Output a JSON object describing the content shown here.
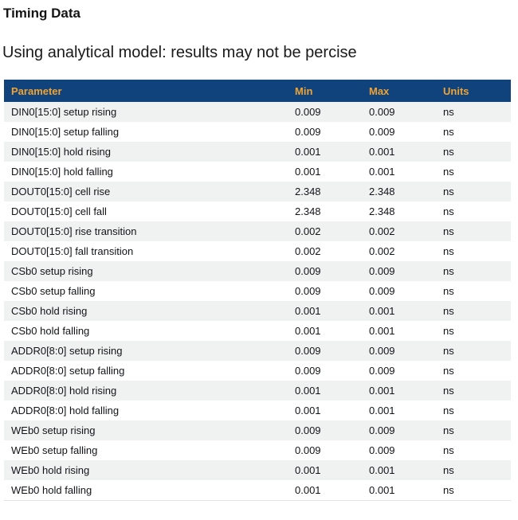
{
  "page": {
    "title": "Timing Data",
    "subtitle": "Using analytical model: results may not be percise"
  },
  "table": {
    "columns": {
      "parameter": "Parameter",
      "min": "Min",
      "max": "Max",
      "units": "Units"
    },
    "rows": [
      {
        "parameter": "DIN0[15:0] setup rising",
        "min": "0.009",
        "max": "0.009",
        "units": "ns"
      },
      {
        "parameter": "DIN0[15:0] setup falling",
        "min": "0.009",
        "max": "0.009",
        "units": "ns"
      },
      {
        "parameter": "DIN0[15:0] hold rising",
        "min": "0.001",
        "max": "0.001",
        "units": "ns"
      },
      {
        "parameter": "DIN0[15:0] hold falling",
        "min": "0.001",
        "max": "0.001",
        "units": "ns"
      },
      {
        "parameter": "DOUT0[15:0] cell rise",
        "min": "2.348",
        "max": "2.348",
        "units": "ns"
      },
      {
        "parameter": "DOUT0[15:0] cell fall",
        "min": "2.348",
        "max": "2.348",
        "units": "ns"
      },
      {
        "parameter": "DOUT0[15:0] rise transition",
        "min": "0.002",
        "max": "0.002",
        "units": "ns"
      },
      {
        "parameter": "DOUT0[15:0] fall transition",
        "min": "0.002",
        "max": "0.002",
        "units": "ns"
      },
      {
        "parameter": "CSb0 setup rising",
        "min": "0.009",
        "max": "0.009",
        "units": "ns"
      },
      {
        "parameter": "CSb0 setup falling",
        "min": "0.009",
        "max": "0.009",
        "units": "ns"
      },
      {
        "parameter": "CSb0 hold rising",
        "min": "0.001",
        "max": "0.001",
        "units": "ns"
      },
      {
        "parameter": "CSb0 hold falling",
        "min": "0.001",
        "max": "0.001",
        "units": "ns"
      },
      {
        "parameter": "ADDR0[8:0] setup rising",
        "min": "0.009",
        "max": "0.009",
        "units": "ns"
      },
      {
        "parameter": "ADDR0[8:0] setup falling",
        "min": "0.009",
        "max": "0.009",
        "units": "ns"
      },
      {
        "parameter": "ADDR0[8:0] hold rising",
        "min": "0.001",
        "max": "0.001",
        "units": "ns"
      },
      {
        "parameter": "ADDR0[8:0] hold falling",
        "min": "0.001",
        "max": "0.001",
        "units": "ns"
      },
      {
        "parameter": "WEb0 setup rising",
        "min": "0.009",
        "max": "0.009",
        "units": "ns"
      },
      {
        "parameter": "WEb0 setup falling",
        "min": "0.009",
        "max": "0.009",
        "units": "ns"
      },
      {
        "parameter": "WEb0 hold rising",
        "min": "0.001",
        "max": "0.001",
        "units": "ns"
      },
      {
        "parameter": "WEb0 hold falling",
        "min": "0.001",
        "max": "0.001",
        "units": "ns"
      }
    ]
  },
  "colors": {
    "header_bg": "#10437c",
    "header_text": "#efa334",
    "stripe_bg": "#f0f2f1",
    "table_border_bottom": "#e2e4e3"
  }
}
